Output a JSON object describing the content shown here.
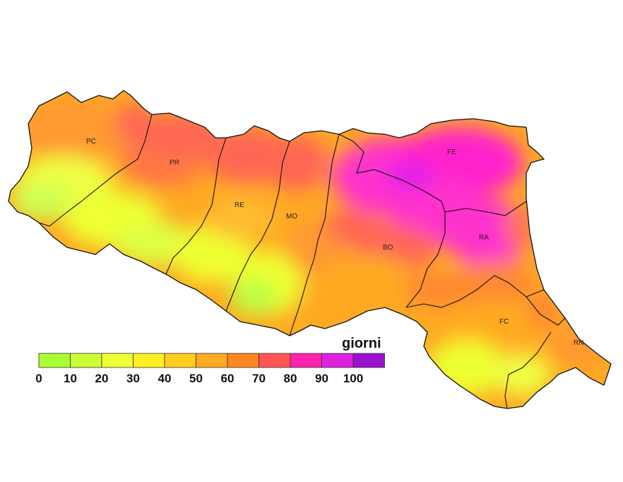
{
  "provinces": [
    {
      "code": "PC"
    },
    {
      "code": "PR"
    },
    {
      "code": "RE"
    },
    {
      "code": "MO"
    },
    {
      "code": "BO"
    },
    {
      "code": "FE"
    },
    {
      "code": "RA"
    },
    {
      "code": "FC"
    },
    {
      "code": "RN"
    }
  ],
  "legend": {
    "title": "giorni",
    "ticks": [
      "0",
      "10",
      "20",
      "30",
      "40",
      "50",
      "60",
      "70",
      "80",
      "90",
      "100"
    ],
    "colors": [
      "#aaff33",
      "#ccff33",
      "#eeff33",
      "#ffee22",
      "#ffcc22",
      "#ffaa22",
      "#ff8822",
      "#ff5555",
      "#ff22aa",
      "#dd22dd",
      "#9911cc"
    ]
  }
}
